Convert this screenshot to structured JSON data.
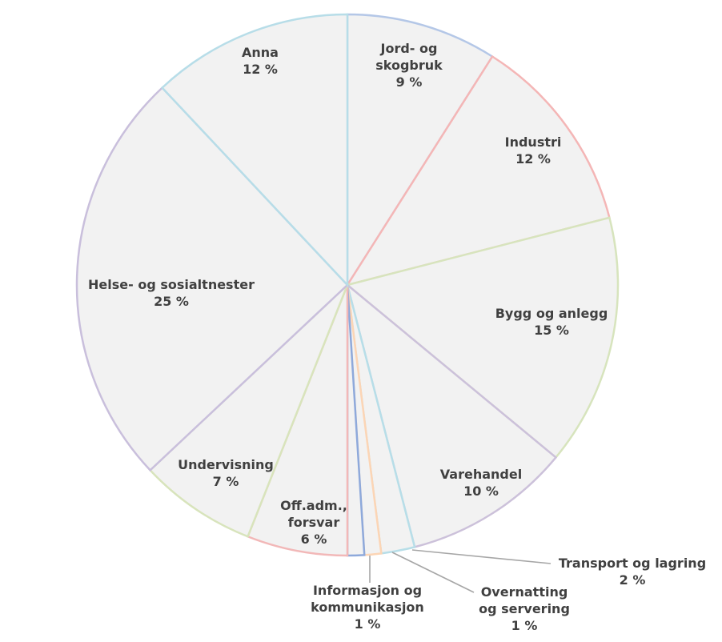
{
  "chart_data": {
    "type": "pie",
    "slices": [
      {
        "label": [
          "Jord- og",
          "skogbruk"
        ],
        "value_label": "9 %",
        "value": 9,
        "color": "#b4c7e7"
      },
      {
        "label": [
          "Industri"
        ],
        "value_label": "12 %",
        "value": 12,
        "color": "#f4b6b6"
      },
      {
        "label": [
          "Bygg og anlegg"
        ],
        "value_label": "15 %",
        "value": 15,
        "color": "#d7e4bd"
      },
      {
        "label": [
          "Varehandel"
        ],
        "value_label": "10 %",
        "value": 10,
        "color": "#ccc1da"
      },
      {
        "label": [
          "Transport og lagring"
        ],
        "value_label": "2 %",
        "value": 2,
        "color": "#b7dee8"
      },
      {
        "label": [
          "Overnatting",
          "og servering"
        ],
        "value_label": "1 %",
        "value": 1,
        "color": "#fcd5b5"
      },
      {
        "label": [
          "Informasjon og",
          "kommunikasjon"
        ],
        "value_label": "1 %",
        "value": 1,
        "color": "#8ea9db"
      },
      {
        "label": [
          "Off.adm.,",
          "forsvar"
        ],
        "value_label": "6 %",
        "value": 6,
        "color": "#f2b8b8"
      },
      {
        "label": [
          "Undervisning"
        ],
        "value_label": "7 %",
        "value": 7,
        "color": "#d8e4bc"
      },
      {
        "label": [
          "Helse- og sosialtnester"
        ],
        "value_label": "25 %",
        "value": 25,
        "color": "#c9bfdc"
      },
      {
        "label": [
          "Anna"
        ],
        "value_label": "12 %",
        "value": 12,
        "color": "#b7dde8"
      }
    ]
  }
}
